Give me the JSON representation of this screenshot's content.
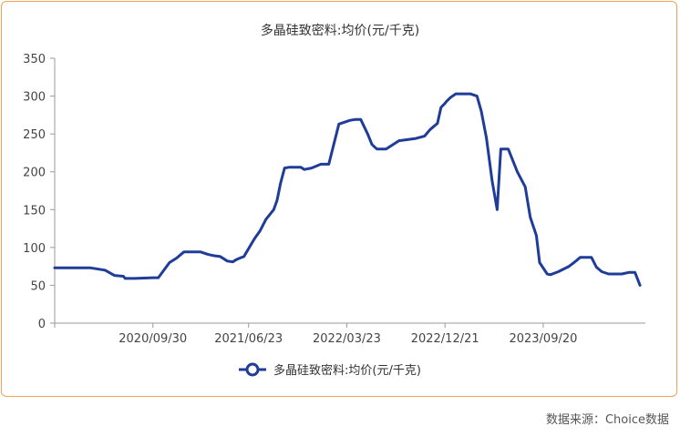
{
  "chart_data": {
    "type": "line",
    "title": "多晶硅致密料:均价(元/千克)",
    "xlabel": "",
    "ylabel": "",
    "ylim": [
      0,
      350
    ],
    "yticks": [
      0,
      50,
      100,
      150,
      200,
      250,
      300,
      350
    ],
    "xlim": [
      "2020-01-01",
      "2024-06-30"
    ],
    "xticks": [
      "2020/09/30",
      "2021/06/23",
      "2022/03/23",
      "2022/12/21",
      "2023/09/20"
    ],
    "legend_position": "bottom",
    "grid": false,
    "series": [
      {
        "name": "多晶硅致密料:均价(元/千克)",
        "color": "#1f3c99",
        "x": [
          "2020-01-01",
          "2020-03-01",
          "2020-03-20",
          "2020-04-10",
          "2020-05-20",
          "2020-06-15",
          "2020-07-10",
          "2020-07-15",
          "2020-08-10",
          "2020-10-01",
          "2020-10-15",
          "2020-11-15",
          "2020-12-05",
          "2020-12-25",
          "2021-01-10",
          "2021-02-10",
          "2021-03-01",
          "2021-03-10",
          "2021-03-20",
          "2021-04-05",
          "2021-04-15",
          "2021-04-25",
          "2021-05-10",
          "2021-05-20",
          "2021-05-30",
          "2021-06-10",
          "2021-07-10",
          "2021-07-25",
          "2021-08-10",
          "2021-09-01",
          "2021-09-10",
          "2021-09-20",
          "2021-10-01",
          "2021-10-15",
          "2021-11-15",
          "2021-11-25",
          "2021-12-15",
          "2022-01-10",
          "2022-02-01",
          "2022-03-01",
          "2022-04-01",
          "2022-04-15",
          "2022-05-01",
          "2022-05-20",
          "2022-06-01",
          "2022-06-15",
          "2022-07-10",
          "2022-08-15",
          "2022-10-01",
          "2022-10-25",
          "2022-11-10",
          "2022-11-20",
          "2022-11-30",
          "2022-12-10",
          "2022-12-20",
          "2022-12-25",
          "2023-01-05",
          "2023-01-20",
          "2023-02-10",
          "2023-03-01",
          "2023-03-20",
          "2023-04-01",
          "2023-04-15",
          "2023-05-01",
          "2023-05-15",
          "2023-05-25",
          "2023-06-15",
          "2023-07-10",
          "2023-08-01",
          "2023-08-15",
          "2023-09-01",
          "2023-09-10",
          "2023-10-01",
          "2023-10-10",
          "2023-11-01",
          "2023-12-01",
          "2023-12-20",
          "2024-01-01",
          "2024-02-01",
          "2024-02-15",
          "2024-03-01",
          "2024-03-20",
          "2024-04-10",
          "2024-04-25",
          "2024-05-15",
          "2024-06-01",
          "2024-06-15"
        ],
        "values": [
          73,
          73,
          73,
          73,
          70,
          63,
          62,
          59,
          59,
          60,
          60,
          80,
          86,
          94,
          94,
          94,
          91,
          90,
          89,
          88,
          85,
          82,
          81,
          84,
          86,
          88,
          112,
          122,
          137,
          150,
          162,
          185,
          205,
          206,
          206,
          203,
          205,
          210,
          210,
          263,
          268,
          269,
          269,
          250,
          236,
          230,
          230,
          241,
          244,
          247,
          256,
          260,
          264,
          285,
          290,
          293,
          298,
          303,
          303,
          303,
          300,
          280,
          245,
          188,
          150,
          230,
          230,
          200,
          180,
          140,
          116,
          80,
          65,
          64,
          68,
          75,
          82,
          87,
          87,
          74,
          68,
          65,
          65,
          65,
          67,
          67,
          50
        ]
      }
    ],
    "source_label": "数据来源：Choice数据"
  }
}
